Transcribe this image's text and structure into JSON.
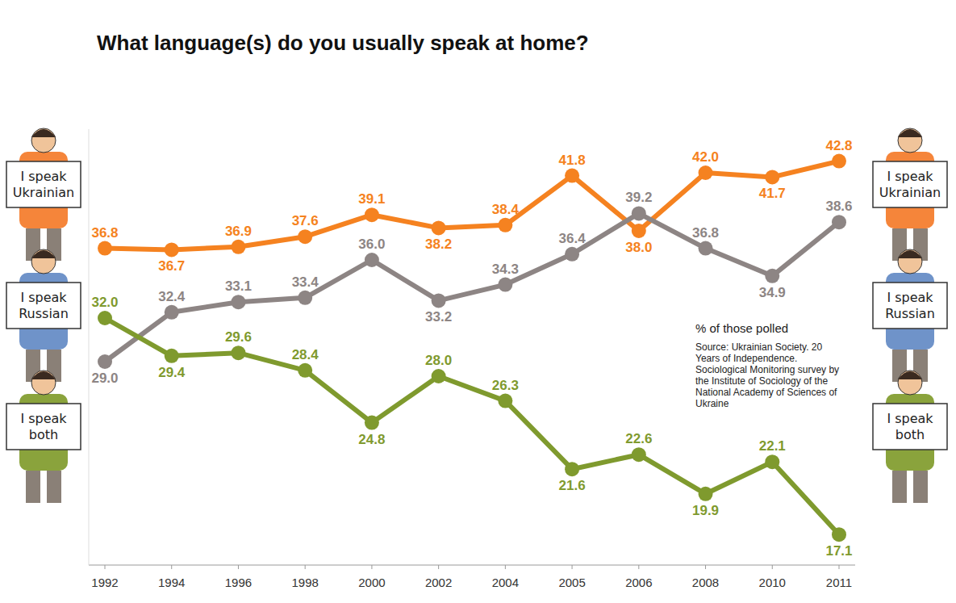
{
  "chart_data": {
    "type": "line",
    "title": "What language(s) do you usually speak at home?",
    "annotations": [
      "% of those polled",
      "Source: Ukrainian Society. 20 Years of Independence. Sociological Monitoring survey by the Institute of Sociology of the National Academy of Sciences of Ukraine"
    ],
    "categories": [
      "1992",
      "1994",
      "1996",
      "1998",
      "2000",
      "2002",
      "2004",
      "2005",
      "2006",
      "2008",
      "2010",
      "2011"
    ],
    "series": [
      {
        "name": "I speak Ukrainian",
        "color": "#f58220",
        "values": [
          36.8,
          36.7,
          36.9,
          37.6,
          39.1,
          38.2,
          38.4,
          41.8,
          38.0,
          42.0,
          41.7,
          42.8
        ],
        "value_labels": [
          "36.8",
          "36.7",
          "36.9",
          "37.6",
          "39.1",
          "38.2",
          "38.4",
          "41.8",
          "38.0",
          "42.0",
          "41.7",
          "42.8"
        ]
      },
      {
        "name": "I speak Russian",
        "color": "#8d8584",
        "values": [
          29.0,
          32.4,
          33.1,
          33.4,
          36.0,
          33.2,
          34.3,
          36.4,
          39.2,
          36.8,
          34.9,
          38.6
        ],
        "value_labels": [
          "29.0",
          "32.4",
          "33.1",
          "33.4",
          "36.0",
          "33.2",
          "34.3",
          "36.4",
          "39.2",
          "36.8",
          "34.9",
          "38.6"
        ]
      },
      {
        "name": "I speak both",
        "color": "#7f9a2e",
        "values": [
          32.0,
          29.4,
          29.6,
          28.4,
          24.8,
          28.0,
          26.3,
          21.6,
          22.6,
          19.9,
          22.1,
          17.1
        ],
        "value_labels": [
          "32.0",
          "29.4",
          "29.6",
          "28.4",
          "24.8",
          "28.0",
          "26.3",
          "21.6",
          "22.6",
          "19.9",
          "22.1",
          "17.1"
        ]
      }
    ],
    "ylim": [
      15,
      45
    ],
    "data_labels": true,
    "tick_labels": "x"
  }
}
